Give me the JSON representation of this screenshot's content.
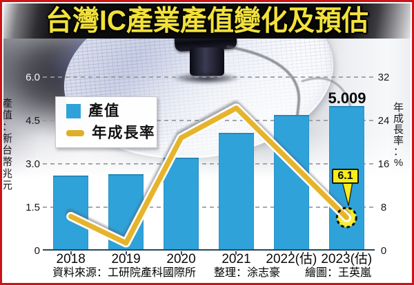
{
  "title": "台灣IC產業產值變化及預估",
  "legend": {
    "items": [
      {
        "label": "產值",
        "swatch": "blue-square",
        "color": "#2fa2da"
      },
      {
        "label": "年成長率",
        "swatch": "yellow-line",
        "color": "#dfae25"
      }
    ]
  },
  "axes": {
    "left": {
      "title": "產值：新台幣兆元",
      "ticks": [
        "6.0",
        "4.5",
        "3.0",
        "1.5",
        "0"
      ]
    },
    "right": {
      "title": "年成長率：%",
      "ticks": [
        "32",
        "24",
        "16",
        "8",
        "0"
      ]
    }
  },
  "annotations": {
    "bar_value_label": "5.009",
    "callout_label": "6.1"
  },
  "footer": {
    "source": "資料來源：工研院產科國際所",
    "editor": "整理：涂志豪",
    "graphics": "繪圖：王英嵐"
  },
  "frame_color": "#cb1416",
  "chart_data": {
    "type": "bar",
    "combo": "bar+line",
    "title": "台灣IC產業產值變化及預估",
    "categories": [
      "2018",
      "2019",
      "2020",
      "2021",
      "2022(估)",
      "2023(估)"
    ],
    "series": [
      {
        "name": "產值",
        "type": "bar",
        "axis": "left",
        "unit": "新台幣兆元",
        "values": [
          2.6,
          2.65,
          3.21,
          4.07,
          4.69,
          5.009
        ],
        "color": "#2fa2da"
      },
      {
        "name": "年成長率",
        "type": "line",
        "axis": "right",
        "unit": "%",
        "values": [
          6.3,
          1.4,
          20.8,
          26.3,
          16.2,
          6.1
        ],
        "color": "#e6b42c"
      }
    ],
    "left_axis": {
      "label": "產值：新台幣兆元",
      "range": [
        0,
        6.0
      ],
      "ticks": [
        0,
        1.5,
        3.0,
        4.5,
        6.0
      ]
    },
    "right_axis": {
      "label": "年成長率：%",
      "range": [
        0,
        32
      ],
      "ticks": [
        0,
        8,
        16,
        24,
        32
      ]
    },
    "grid": "dashed horizontal gridlines",
    "legend_position": "upper left",
    "annotations": [
      {
        "text": "5.009",
        "target": "2023(估) bar top"
      },
      {
        "text": "6.1",
        "target": "2023(估) line end point"
      }
    ]
  }
}
